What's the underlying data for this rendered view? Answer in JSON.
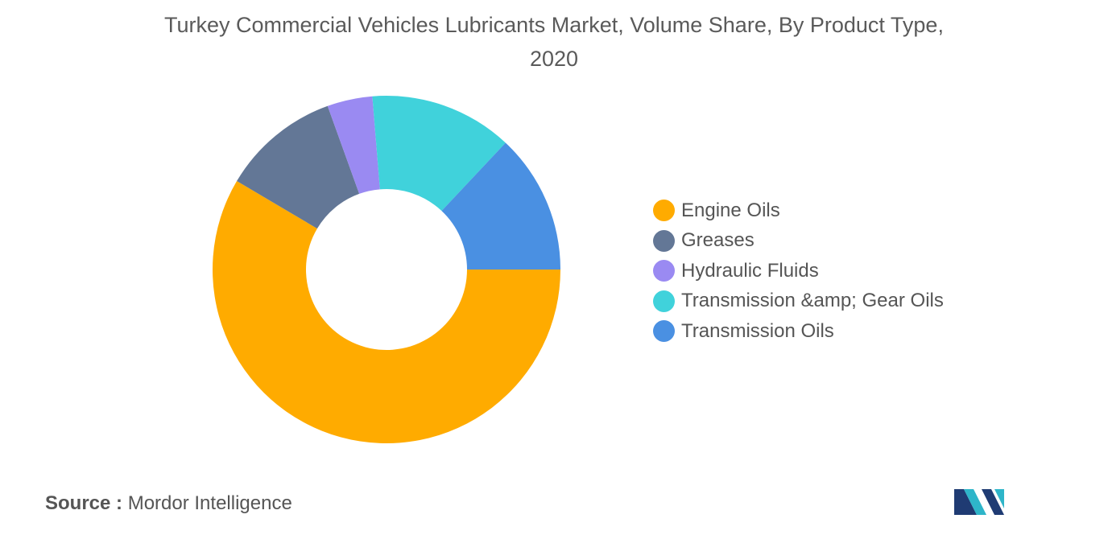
{
  "chart_data": {
    "type": "pie",
    "donut": true,
    "title": "Turkey Commercial Vehicles Lubricants Market, Volume Share, By Product Type, 2020",
    "start": "3 o'clock, clockwise",
    "slices": [
      {
        "label": "Engine Oils",
        "value": 58.5,
        "color": "#FFAB00"
      },
      {
        "label": "Greases",
        "value": 11.0,
        "color": "#637796"
      },
      {
        "label": "Hydraulic Fluids",
        "value": 4.2,
        "color": "#9A8AF2"
      },
      {
        "label": "Transmission &amp; Gear Oils",
        "value": 13.3,
        "color": "#40D2DB"
      },
      {
        "label": "Transmission Oils",
        "value": 13.0,
        "color": "#4A90E2"
      }
    ],
    "legend_position": "right"
  },
  "footer": {
    "source_prefix": "Source :",
    "source_name": "Mordor Intelligence"
  },
  "logo": {
    "icon": "mordor-intelligence-logo-icon",
    "colors": [
      "#1F3B73",
      "#2EB5C9"
    ]
  }
}
